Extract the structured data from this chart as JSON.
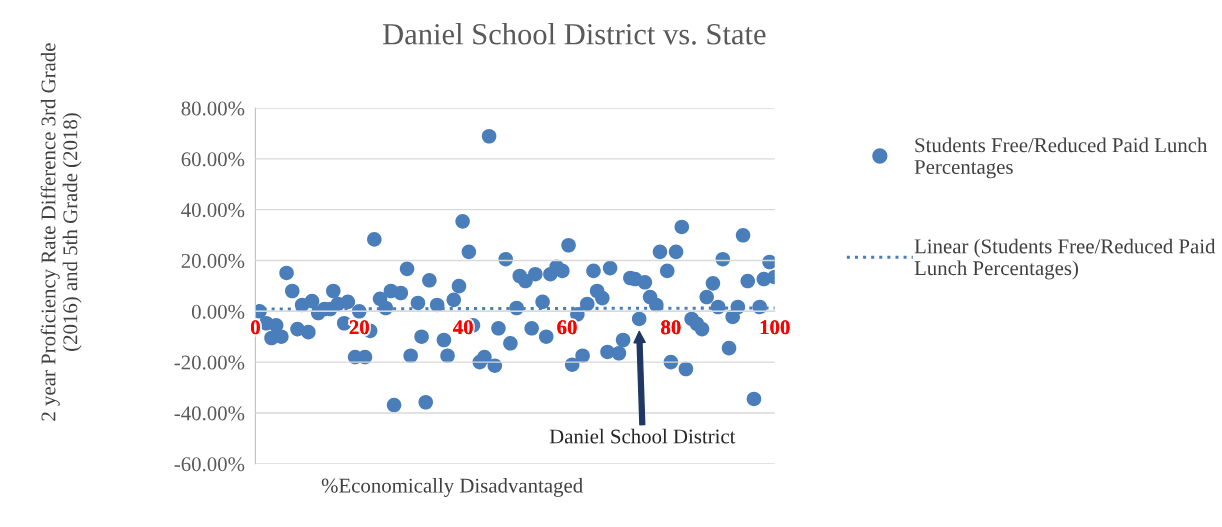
{
  "chart_data": {
    "type": "scatter",
    "title": "Daniel School District vs. State",
    "xlabel": "%Economically Disadvantaged",
    "ylabel": "2 year Proficiency Rate Difference 3rd Grade (2016) and 5th Grade (2018)",
    "series": [
      {
        "name": "Students Free/Reduced Paid Lunch Percentages",
        "color": "#4a7ebb",
        "type": "scatter",
        "marker": "circle",
        "x": [
          0.8,
          2.1,
          4,
          3.1,
          5,
          6,
          7.1,
          8.1,
          10.2,
          9,
          10.9,
          12.1,
          13.3,
          14.4,
          15,
          15.9,
          17.1,
          17.8,
          20,
          19.2,
          21.1,
          22.1,
          22.9,
          24,
          25.1,
          26.1,
          28,
          29.2,
          26.7,
          29.9,
          31.3,
          32,
          33.5,
          32.8,
          35,
          36.3,
          37,
          38.2,
          39.2,
          39.9,
          41.1,
          41.9,
          43.2,
          44.1,
          46.1,
          45,
          46.8,
          48.2,
          49.1,
          50.3,
          50.9,
          52,
          53.2,
          53.9,
          55.3,
          56,
          56.8,
          58,
          59.1,
          60.3,
          62,
          61,
          63,
          63.9,
          65.1,
          65.8,
          66.8,
          67.8,
          68.3,
          70,
          70.8,
          72.2,
          73.1,
          75,
          73.9,
          76,
          77.2,
          77.9,
          79.3,
          81,
          82.1,
          80,
          82.9,
          84,
          85,
          86,
          86.9,
          88.1,
          89.1,
          90,
          91.2,
          91.9,
          92.9,
          93.9,
          94.8,
          96,
          97.1,
          97.9,
          99,
          100
        ],
        "values": [
          0,
          -4.7,
          -5.5,
          -10.5,
          -10,
          15.1,
          8,
          -7,
          -8.2,
          2.5,
          4,
          -0.7,
          0.9,
          0.9,
          8,
          2.9,
          -4.7,
          3.7,
          0,
          -18,
          -18,
          -7.7,
          28.3,
          4.9,
          1.3,
          8,
          7.2,
          16.7,
          -36.9,
          -17.5,
          3.3,
          -10,
          12.2,
          -35.8,
          2.5,
          -11.3,
          -17.5,
          4.5,
          9.9,
          35.4,
          23.4,
          -5.5,
          -20,
          -18,
          -21.4,
          68.9,
          -6.7,
          20.5,
          -12.6,
          1.3,
          13.9,
          11.9,
          -6.7,
          14.6,
          3.7,
          -10,
          14.6,
          17.5,
          15.9,
          26,
          -1.2,
          -21,
          -17.5,
          2.9,
          15.9,
          8,
          5.2,
          -16,
          17,
          -16.5,
          -11.3,
          13.1,
          12.7,
          11.4,
          -3,
          5.6,
          2.5,
          23.4,
          15.9,
          23.4,
          33.2,
          -20,
          -22.7,
          -3,
          -4.9,
          -7,
          5.6,
          11,
          1.7,
          20.5,
          -14.5,
          -2.2,
          1.7,
          29.9,
          11.9,
          -34.5,
          1.7,
          12.7,
          19.4,
          13.5
        ]
      },
      {
        "name": "Linear (Students Free/Reduced Paid Lunch Percentages)",
        "color": "#4a7ebb",
        "type": "line",
        "line_style": "dotted",
        "x": [
          0,
          100
        ],
        "values": [
          0.9,
          1.3
        ]
      }
    ],
    "xlim": [
      0,
      100
    ],
    "xticks": [
      0,
      20,
      40,
      60,
      80,
      100
    ],
    "ylim": [
      -60,
      80
    ],
    "yticks": [
      {
        "value": -60,
        "label": "-60.00%"
      },
      {
        "value": -40,
        "label": "-40.00%"
      },
      {
        "value": -20,
        "label": "-20.00%"
      },
      {
        "value": 0,
        "label": "0.00%"
      },
      {
        "value": 20,
        "label": "20.00%"
      },
      {
        "value": 40,
        "label": "40.00%"
      },
      {
        "value": 60,
        "label": "60.00%"
      },
      {
        "value": 80,
        "label": "80.00%"
      }
    ],
    "grid": "y",
    "legend": "right",
    "annotations": [
      "Daniel School District"
    ]
  }
}
